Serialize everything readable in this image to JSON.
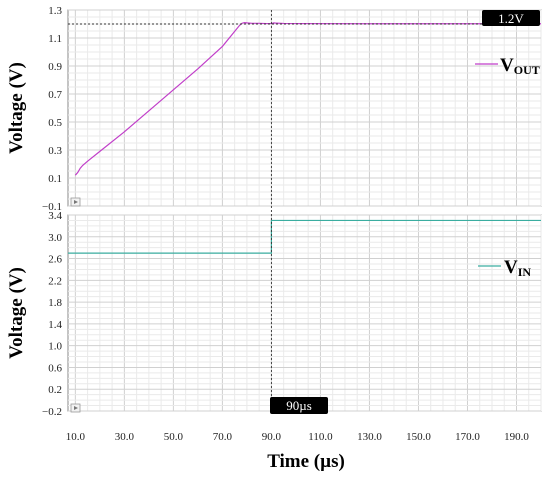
{
  "chart_data": [
    {
      "type": "line",
      "title": "",
      "xlabel": "Time (µs)",
      "ylabel": "Voltage (V)",
      "xlim": [
        7,
        200
      ],
      "ylim": [
        -0.1,
        1.3
      ],
      "yticks": [
        "1.3",
        "1.1",
        "0.9",
        "0.7",
        "0.5",
        "0.3",
        "0.1",
        "−0.1"
      ],
      "ytick_values": [
        1.3,
        1.1,
        0.9,
        0.7,
        0.5,
        0.3,
        0.1,
        -0.1
      ],
      "grid": true,
      "legend_position": "right",
      "series": [
        {
          "name": "V",
          "name_subscript": "OUT",
          "color": "#c13fc9",
          "x": [
            10,
            11,
            12,
            13,
            15,
            20,
            30,
            40,
            50,
            60,
            70,
            77,
            78,
            79,
            80,
            82,
            85,
            88,
            90,
            91,
            92,
            95,
            100,
            130,
            160,
            200
          ],
          "y": [
            0.12,
            0.14,
            0.17,
            0.19,
            0.22,
            0.29,
            0.43,
            0.58,
            0.73,
            0.88,
            1.04,
            1.19,
            1.205,
            1.21,
            1.208,
            1.205,
            1.205,
            1.203,
            1.203,
            1.208,
            1.206,
            1.204,
            1.203,
            1.202,
            1.202,
            1.202
          ]
        }
      ],
      "reference_line": {
        "y": 1.2,
        "label": "1.2V"
      }
    },
    {
      "type": "line",
      "title": "",
      "xlabel": "Time (µs)",
      "ylabel": "Voltage (V)",
      "xlim": [
        7,
        200
      ],
      "ylim": [
        -0.2,
        3.4
      ],
      "yticks": [
        "3.4",
        "3.0",
        "2.6",
        "2.2",
        "1.8",
        "1.4",
        "1.0",
        "0.6",
        "0.2",
        "−0.2"
      ],
      "ytick_values": [
        3.4,
        3.0,
        2.6,
        2.2,
        1.8,
        1.4,
        1.0,
        0.6,
        0.2,
        -0.2
      ],
      "xticks": [
        "10.0",
        "30.0",
        "50.0",
        "70.0",
        "90.0",
        "110.0",
        "130.0",
        "150.0",
        "170.0",
        "190.0"
      ],
      "xtick_values": [
        10,
        30,
        50,
        70,
        90,
        110,
        130,
        150,
        170,
        190
      ],
      "grid": true,
      "legend_position": "right",
      "series": [
        {
          "name": "V",
          "name_subscript": "IN",
          "color": "#3aada0",
          "x": [
            7,
            90,
            90,
            200
          ],
          "y": [
            2.7,
            2.7,
            3.3,
            3.3
          ]
        }
      ],
      "marker_line": {
        "x": 90,
        "label": "90µs"
      }
    }
  ]
}
